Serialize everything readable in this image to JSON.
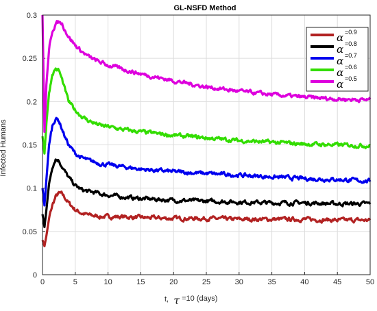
{
  "chart_data": {
    "type": "line",
    "title": "GL-NSFD Method",
    "ylabel": "Infected Humans",
    "xlabel": {
      "prefix": "t,",
      "symbol": "τ",
      "suffix": "=10 (days)"
    },
    "xlim": [
      0,
      50
    ],
    "ylim": [
      0,
      0.3
    ],
    "xticks": [
      "0",
      "5",
      "10",
      "15",
      "20",
      "25",
      "30",
      "35",
      "40",
      "45",
      "50"
    ],
    "yticks": [
      "0",
      "0.05",
      "0.1",
      "0.15",
      "0.2",
      "0.25",
      "0.3"
    ],
    "grid": true,
    "legend_position": "top-right",
    "series": [
      {
        "name": "=0.9",
        "symbol": "α",
        "color": "#b22222",
        "x": [
          0,
          0.3,
          0.6,
          1,
          1.5,
          2,
          2.5,
          3,
          3.5,
          4,
          5,
          6,
          7,
          8,
          9,
          10,
          12,
          15,
          20,
          25,
          30,
          35,
          40,
          45,
          50
        ],
        "y": [
          0.04,
          0.033,
          0.045,
          0.065,
          0.08,
          0.09,
          0.094,
          0.093,
          0.088,
          0.083,
          0.075,
          0.071,
          0.069,
          0.068,
          0.067,
          0.067,
          0.067,
          0.066,
          0.065,
          0.065,
          0.064,
          0.064,
          0.064,
          0.063,
          0.063
        ]
      },
      {
        "name": "=0.8",
        "symbol": "α",
        "color": "#000000",
        "x": [
          0,
          0.3,
          0.6,
          1,
          1.5,
          2,
          2.5,
          3,
          3.5,
          4,
          5,
          6,
          7,
          8,
          9,
          10,
          12,
          15,
          20,
          25,
          30,
          35,
          40,
          45,
          50
        ],
        "y": [
          0.07,
          0.055,
          0.075,
          0.105,
          0.125,
          0.134,
          0.132,
          0.125,
          0.118,
          0.112,
          0.103,
          0.098,
          0.096,
          0.095,
          0.093,
          0.092,
          0.09,
          0.088,
          0.086,
          0.085,
          0.084,
          0.083,
          0.083,
          0.082,
          0.082
        ]
      },
      {
        "name": "=0.7",
        "symbol": "α",
        "color": "#0000ee",
        "x": [
          0,
          0.3,
          0.6,
          1,
          1.5,
          2,
          2.5,
          3,
          3.5,
          4,
          5,
          6,
          7,
          8,
          9,
          10,
          12,
          15,
          20,
          25,
          30,
          35,
          40,
          45,
          50
        ],
        "y": [
          0.1,
          0.08,
          0.11,
          0.15,
          0.172,
          0.181,
          0.178,
          0.168,
          0.158,
          0.15,
          0.14,
          0.135,
          0.132,
          0.13,
          0.128,
          0.127,
          0.125,
          0.122,
          0.119,
          0.117,
          0.115,
          0.113,
          0.111,
          0.11,
          0.108
        ]
      },
      {
        "name": "=0.6",
        "symbol": "α",
        "color": "#33dd00",
        "x": [
          0,
          0.3,
          0.6,
          1,
          1.5,
          2,
          2.5,
          3,
          3.5,
          4,
          5,
          6,
          7,
          8,
          9,
          10,
          12,
          15,
          20,
          25,
          30,
          35,
          40,
          45,
          50
        ],
        "y": [
          0.16,
          0.14,
          0.175,
          0.21,
          0.232,
          0.238,
          0.236,
          0.225,
          0.212,
          0.2,
          0.19,
          0.183,
          0.178,
          0.175,
          0.172,
          0.171,
          0.168,
          0.165,
          0.161,
          0.158,
          0.155,
          0.153,
          0.151,
          0.15,
          0.149
        ]
      },
      {
        "name": "=0.5",
        "symbol": "α",
        "color": "#dd00dd",
        "x": [
          0,
          0.3,
          0.6,
          1,
          1.5,
          2,
          2.5,
          3,
          3.5,
          4,
          5,
          6,
          7,
          8,
          9,
          10,
          12,
          15,
          20,
          25,
          30,
          35,
          40,
          45,
          50
        ],
        "y": [
          0.3,
          0.165,
          0.22,
          0.26,
          0.282,
          0.29,
          0.292,
          0.29,
          0.282,
          0.275,
          0.265,
          0.258,
          0.252,
          0.248,
          0.245,
          0.242,
          0.238,
          0.232,
          0.224,
          0.217,
          0.212,
          0.208,
          0.205,
          0.203,
          0.202
        ]
      }
    ]
  }
}
